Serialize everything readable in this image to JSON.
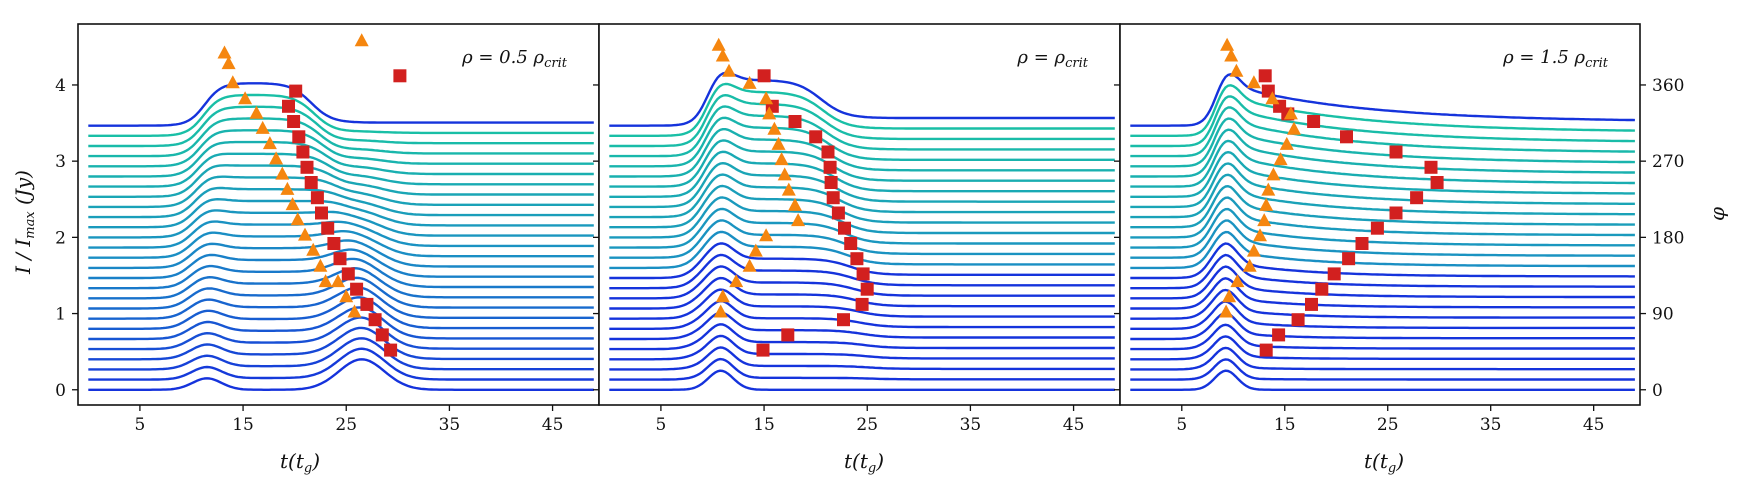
{
  "chart_data": {
    "type": "line",
    "ylabel": "I/I_max (Jy)",
    "ylabel_display": "I / I",
    "ylabel_sub": "max",
    "ylabel_units": " (Jy)",
    "right_ylabel": "φ",
    "xlabel_main": "t(t",
    "xlabel_sub": "g",
    "xlabel_end": ")",
    "x_ticks": [
      "5",
      "15",
      "25",
      "35",
      "45"
    ],
    "x_tick_values": [
      5,
      15,
      25,
      35,
      45
    ],
    "xlim": [
      -1,
      49.5
    ],
    "y_ticks": [
      "0",
      "1",
      "2",
      "3",
      "4"
    ],
    "y_tick_values": [
      0,
      1,
      2,
      3,
      4
    ],
    "ylim": [
      -0.2,
      4.8
    ],
    "right_ticks": [
      "0",
      "90",
      "180",
      "270",
      "360"
    ],
    "right_tick_values": [
      0,
      90,
      180,
      270,
      360
    ],
    "phi_per_unit": 90,
    "n_curves": 27,
    "curve_offset_step": 0.1333,
    "colors": {
      "low": "#1533dc",
      "mid": "#1a8ec4",
      "high": "#19c3a4",
      "triangle": "#f5860f",
      "square": "#d2201f"
    },
    "panels": [
      {
        "title": "ρ = 0.5 ρ",
        "title_sub": "crit",
        "triangles": [
          [
            13.2,
            4.42
          ],
          [
            13.6,
            4.28
          ],
          [
            14.0,
            4.03
          ],
          [
            15.2,
            3.82
          ],
          [
            16.3,
            3.63
          ],
          [
            16.9,
            3.43
          ],
          [
            17.6,
            3.23
          ],
          [
            18.2,
            3.03
          ],
          [
            18.8,
            2.83
          ],
          [
            19.3,
            2.63
          ],
          [
            19.8,
            2.43
          ],
          [
            20.3,
            2.23
          ],
          [
            21.0,
            2.03
          ],
          [
            21.8,
            1.83
          ],
          [
            22.5,
            1.62
          ],
          [
            23.0,
            1.42
          ],
          [
            24.2,
            1.42
          ],
          [
            25.0,
            1.22
          ],
          [
            25.8,
            1.02
          ],
          [
            26.5,
            4.58
          ]
        ],
        "squares": [
          [
            20.1,
            3.92
          ],
          [
            19.4,
            3.72
          ],
          [
            19.9,
            3.52
          ],
          [
            20.4,
            3.32
          ],
          [
            20.8,
            3.12
          ],
          [
            21.2,
            2.92
          ],
          [
            21.6,
            2.72
          ],
          [
            22.2,
            2.52
          ],
          [
            22.6,
            2.32
          ],
          [
            23.2,
            2.12
          ],
          [
            23.8,
            1.92
          ],
          [
            24.4,
            1.72
          ],
          [
            25.2,
            1.52
          ],
          [
            26.0,
            1.32
          ],
          [
            27.0,
            1.12
          ],
          [
            27.8,
            0.92
          ],
          [
            28.5,
            0.72
          ],
          [
            29.3,
            0.52
          ],
          [
            30.2,
            4.12
          ]
        ]
      },
      {
        "title": "ρ = ρ",
        "title_sub": "crit",
        "triangles": [
          [
            10.6,
            4.52
          ],
          [
            11.0,
            4.38
          ],
          [
            11.6,
            4.18
          ],
          [
            13.6,
            4.02
          ],
          [
            15.2,
            3.82
          ],
          [
            15.5,
            3.62
          ],
          [
            16.0,
            3.42
          ],
          [
            16.4,
            3.22
          ],
          [
            16.7,
            3.02
          ],
          [
            17.0,
            2.82
          ],
          [
            17.4,
            2.62
          ],
          [
            18.0,
            2.42
          ],
          [
            18.3,
            2.22
          ],
          [
            15.2,
            2.02
          ],
          [
            14.2,
            1.82
          ],
          [
            13.6,
            1.62
          ],
          [
            12.3,
            1.42
          ],
          [
            11.0,
            1.22
          ],
          [
            10.8,
            1.02
          ]
        ],
        "squares": [
          [
            15.0,
            4.12
          ],
          [
            15.8,
            3.72
          ],
          [
            18.0,
            3.52
          ],
          [
            20.0,
            3.32
          ],
          [
            21.2,
            3.12
          ],
          [
            21.4,
            2.92
          ],
          [
            21.5,
            2.72
          ],
          [
            21.7,
            2.52
          ],
          [
            22.2,
            2.32
          ],
          [
            22.8,
            2.12
          ],
          [
            23.4,
            1.92
          ],
          [
            24.0,
            1.72
          ],
          [
            24.6,
            1.52
          ],
          [
            25.0,
            1.32
          ],
          [
            24.5,
            1.12
          ],
          [
            22.7,
            0.92
          ],
          [
            17.3,
            0.72
          ],
          [
            14.9,
            0.52
          ]
        ]
      },
      {
        "title": "ρ = 1.5 ρ",
        "title_sub": "crit",
        "triangles": [
          [
            9.4,
            4.52
          ],
          [
            9.8,
            4.38
          ],
          [
            10.3,
            4.18
          ],
          [
            12.0,
            4.03
          ],
          [
            13.8,
            3.82
          ],
          [
            15.6,
            3.62
          ],
          [
            15.9,
            3.42
          ],
          [
            15.2,
            3.22
          ],
          [
            14.6,
            3.02
          ],
          [
            13.9,
            2.82
          ],
          [
            13.4,
            2.62
          ],
          [
            13.2,
            2.42
          ],
          [
            13.0,
            2.22
          ],
          [
            12.6,
            2.02
          ],
          [
            12.0,
            1.82
          ],
          [
            11.6,
            1.62
          ],
          [
            10.4,
            1.42
          ],
          [
            9.6,
            1.22
          ],
          [
            9.3,
            1.02
          ]
        ],
        "squares": [
          [
            13.1,
            4.12
          ],
          [
            13.4,
            3.92
          ],
          [
            14.5,
            3.72
          ],
          [
            15.3,
            3.62
          ],
          [
            17.8,
            3.52
          ],
          [
            21.0,
            3.32
          ],
          [
            25.8,
            3.12
          ],
          [
            29.2,
            2.92
          ],
          [
            29.8,
            2.72
          ],
          [
            27.8,
            2.52
          ],
          [
            25.8,
            2.32
          ],
          [
            24.0,
            2.12
          ],
          [
            22.5,
            1.92
          ],
          [
            21.2,
            1.72
          ],
          [
            19.8,
            1.52
          ],
          [
            18.6,
            1.32
          ],
          [
            17.6,
            1.12
          ],
          [
            16.3,
            0.92
          ],
          [
            14.4,
            0.72
          ],
          [
            13.2,
            0.52
          ]
        ]
      }
    ]
  }
}
